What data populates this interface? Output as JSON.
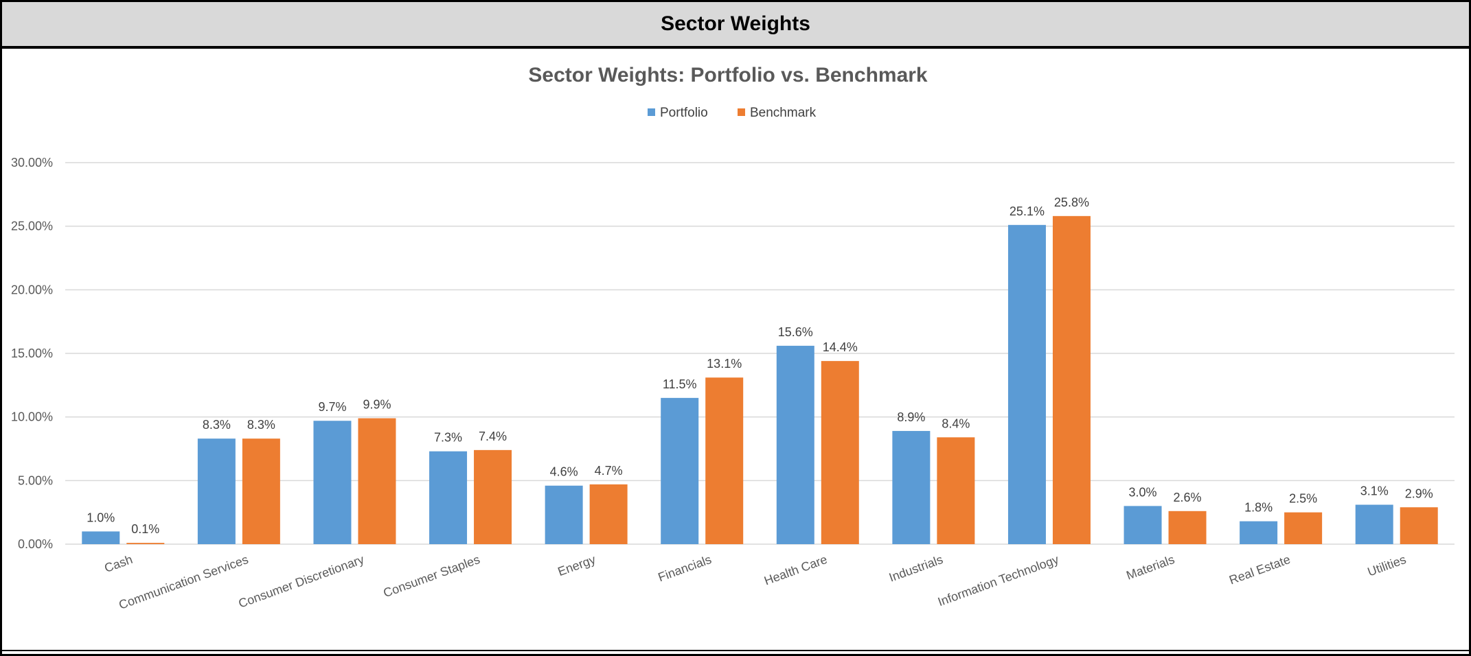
{
  "header": {
    "title": "Sector Weights"
  },
  "colors": {
    "portfolio": "#5b9bd5",
    "benchmark": "#ed7d31",
    "grid": "#d9d9d9",
    "header_bg": "#d9d9d9"
  },
  "chart_data": {
    "type": "bar",
    "title": "Sector Weights:  Portfolio vs. Benchmark",
    "xlabel": "",
    "ylabel": "",
    "ylim": [
      0,
      30
    ],
    "yticks": [
      "0.00%",
      "5.00%",
      "10.00%",
      "15.00%",
      "20.00%",
      "25.00%",
      "30.00%"
    ],
    "grid": true,
    "legend_position": "top",
    "categories": [
      "Cash",
      "Communication Services",
      "Consumer Discretionary",
      "Consumer Staples",
      "Energy",
      "Financials",
      "Health Care",
      "Industrials",
      "Information Technology",
      "Materials",
      "Real Estate",
      "Utilities"
    ],
    "series": [
      {
        "name": "Portfolio",
        "values": [
          1.0,
          8.3,
          9.7,
          7.3,
          4.6,
          11.5,
          15.6,
          8.9,
          25.1,
          3.0,
          1.8,
          3.1
        ],
        "labels": [
          "1.0%",
          "8.3%",
          "9.7%",
          "7.3%",
          "4.6%",
          "11.5%",
          "15.6%",
          "8.9%",
          "25.1%",
          "3.0%",
          "1.8%",
          "3.1%"
        ]
      },
      {
        "name": "Benchmark",
        "values": [
          0.1,
          8.3,
          9.9,
          7.4,
          4.7,
          13.1,
          14.4,
          8.4,
          25.8,
          2.6,
          2.5,
          2.9
        ],
        "labels": [
          "0.1%",
          "8.3%",
          "9.9%",
          "7.4%",
          "4.7%",
          "13.1%",
          "14.4%",
          "8.4%",
          "25.8%",
          "2.6%",
          "2.5%",
          "2.9%"
        ]
      }
    ]
  }
}
